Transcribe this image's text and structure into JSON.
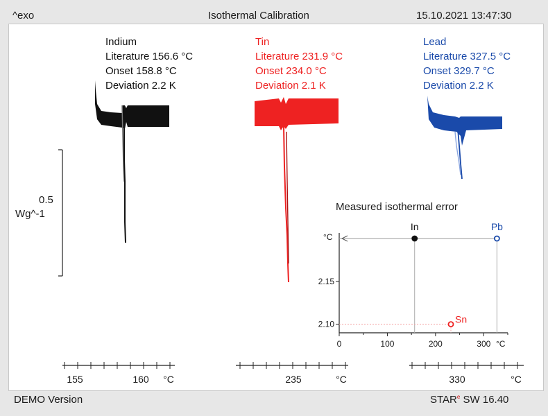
{
  "header": {
    "exo_label": "^exo",
    "title": "Isothermal Calibration",
    "timestamp": "15.10.2021 13:47:30"
  },
  "footer": {
    "demo_label": "DEMO Version",
    "star_label": "STAR",
    "star_mark": "e",
    "sw_label": "SW 16.40"
  },
  "scale_bar": {
    "value": "0.5",
    "unit": "Wg^-1"
  },
  "colors": {
    "indium": "#111111",
    "tin": "#ee2222",
    "lead": "#1a4aaa"
  },
  "annotations": {
    "indium": {
      "name": "Indium",
      "literature": "Literature 156.6 °C",
      "onset": "Onset 158.8 °C",
      "deviation": "Deviation 2.2 K"
    },
    "tin": {
      "name": "Tin",
      "literature": "Literature 231.9 °C",
      "onset": "Onset 234.0 °C",
      "deviation": "Deviation 2.1 K"
    },
    "lead": {
      "name": "Lead",
      "literature": "Literature 327.5 °C",
      "onset": "Onset 329.7 °C",
      "deviation": "Deviation 2.2 K"
    }
  },
  "axes": [
    {
      "ticks": [
        "155",
        "160"
      ],
      "unit": "°C"
    },
    {
      "ticks": [
        "235"
      ],
      "unit": "°C"
    },
    {
      "ticks": [
        "330"
      ],
      "unit": "°C"
    }
  ],
  "chart_data": [
    {
      "type": "line",
      "title": "Isothermal Calibration",
      "series": [
        {
          "name": "Indium",
          "onset": 158.8,
          "literature": 156.6,
          "deviation_K": 2.2,
          "x_range": [
            153,
            164
          ],
          "x_ticks": [
            155,
            160
          ]
        },
        {
          "name": "Tin",
          "onset": 234.0,
          "literature": 231.9,
          "deviation_K": 2.1,
          "x_range": [
            232,
            238
          ],
          "x_ticks": [
            235
          ]
        },
        {
          "name": "Lead",
          "onset": 329.7,
          "literature": 327.5,
          "deviation_K": 2.2,
          "x_range": [
            326,
            334
          ],
          "x_ticks": [
            330
          ]
        }
      ],
      "xlabel": "°C"
    },
    {
      "type": "scatter",
      "title": "Measured isothermal error",
      "xlabel": "°C",
      "ylabel": "°C",
      "xlim": [
        0,
        350
      ],
      "ylim": [
        2.09,
        2.2
      ],
      "x_ticks": [
        "0",
        "100",
        "200",
        "300"
      ],
      "y_ticks": [
        "2.10",
        "2.15"
      ],
      "points": [
        {
          "label": "In",
          "x": 156.6,
          "y": 2.2
        },
        {
          "label": "Sn",
          "x": 231.9,
          "y": 2.1
        },
        {
          "label": "Pb",
          "x": 327.5,
          "y": 2.2
        }
      ]
    }
  ]
}
